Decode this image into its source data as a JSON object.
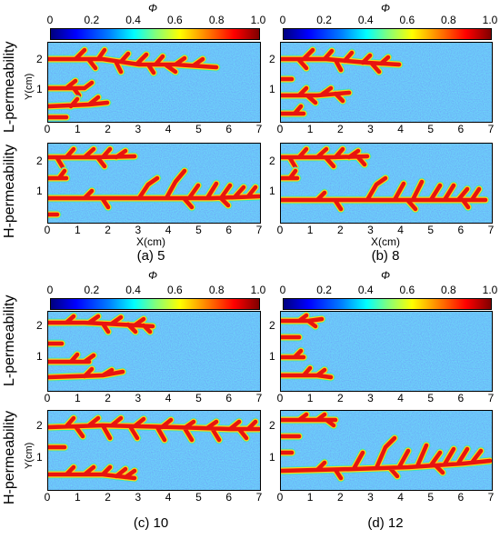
{
  "colorbar": {
    "symbol": "Φ",
    "ticks": [
      "0",
      "0.2",
      "0.4",
      "0.6",
      "0.8",
      "1.0"
    ],
    "colors": [
      "#00007f",
      "#0000ff",
      "#007fff",
      "#00ffff",
      "#7fff7f",
      "#ffff00",
      "#ff7f00",
      "#ff0000",
      "#7f0000"
    ]
  },
  "row_labels": {
    "low": "L-permeability",
    "high": "H-permeability"
  },
  "axes": {
    "y_label": "Y(cm)",
    "x_label": "X(cm)",
    "x_ticks": [
      "0",
      "1",
      "2",
      "3",
      "4",
      "5",
      "6",
      "7"
    ],
    "y_ticks": [
      "2",
      "1"
    ]
  },
  "captions": {
    "a": "(a) 5",
    "b": "(b) 8",
    "c": "(c) 10",
    "d": "(d) 12"
  },
  "colors": {
    "background_field": "#1f4fe0",
    "channel": "#e8140f",
    "halo": "#ffd21a",
    "rim": "#39e0c8"
  }
}
